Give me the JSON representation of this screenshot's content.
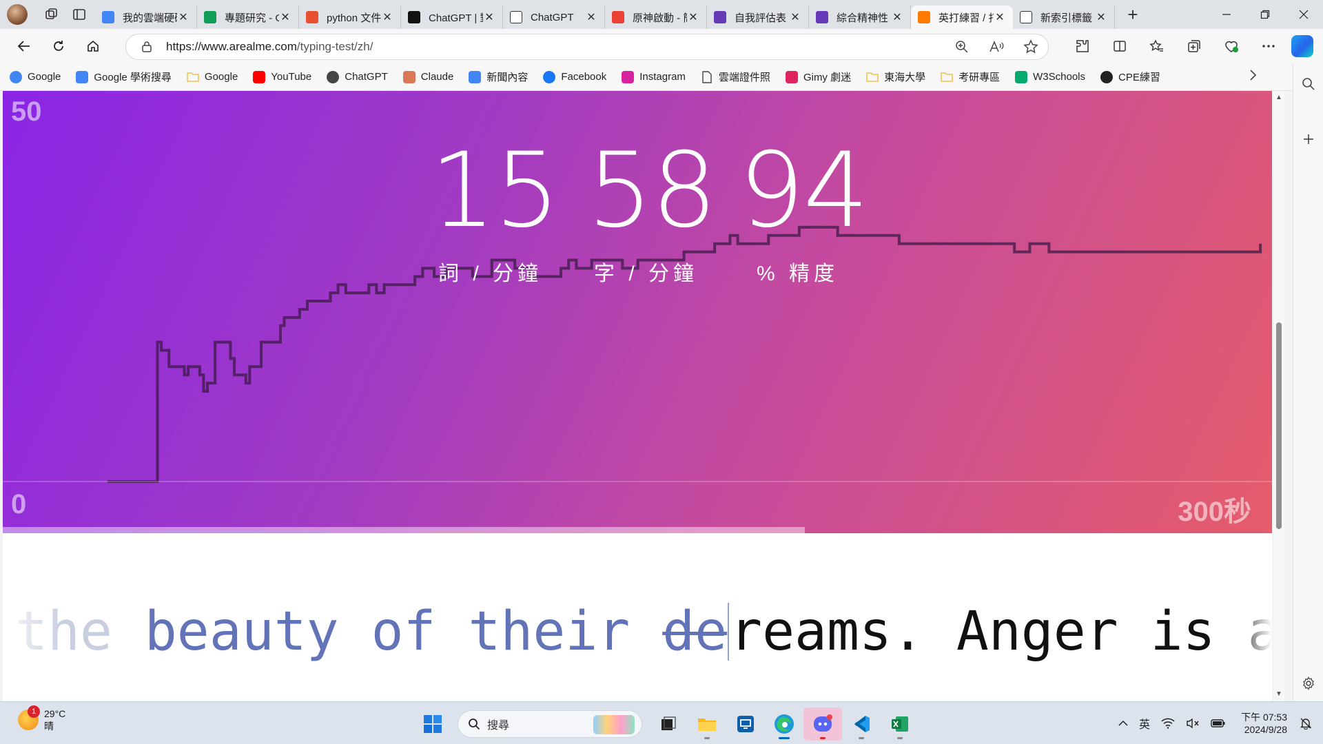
{
  "browser": {
    "tabs": [
      {
        "title": "我的雲端硬碟",
        "color": "#4285f4",
        "icon": "google-drive-icon"
      },
      {
        "title": "專題研究 - Google",
        "color": "#0f9d58",
        "icon": "google-drive-icon"
      },
      {
        "title": "python 文件",
        "color": "#e8502f",
        "icon": "c-icon"
      },
      {
        "title": "ChatGPT | 對話",
        "color": "#111111",
        "icon": "chatgpt-icon"
      },
      {
        "title": "ChatGPT",
        "color": "#ffffff",
        "icon": "chatgpt-icon"
      },
      {
        "title": "原神啟動 - 簡報",
        "color": "#e94235",
        "icon": "slides-icon"
      },
      {
        "title": "自我評估表",
        "color": "#673ab7",
        "icon": "forms-icon"
      },
      {
        "title": "綜合精神性",
        "color": "#673ab7",
        "icon": "forms-icon"
      },
      {
        "title": "英打練習 / 打字",
        "color": "#ff7a00",
        "icon": "fox-icon",
        "active": true
      },
      {
        "title": "新索引標籤",
        "color": "#ffffff",
        "icon": "newtab-icon"
      }
    ],
    "url": "https://www.arealme.com/typing-test/zh/",
    "url_host": "https://www.arealme.com",
    "url_path": "/typing-test/zh/"
  },
  "bookmarks": [
    {
      "label": "Google",
      "icon": "google-icon",
      "color": "#4285f4"
    },
    {
      "label": "Google 學術搜尋",
      "icon": "scholar-icon",
      "color": "#4285f4"
    },
    {
      "label": "Google",
      "icon": "folder-icon",
      "color": "#f2c14e"
    },
    {
      "label": "YouTube",
      "icon": "youtube-icon",
      "color": "#ff0000"
    },
    {
      "label": "ChatGPT",
      "icon": "chatgpt-icon",
      "color": "#444444"
    },
    {
      "label": "Claude",
      "icon": "claude-icon",
      "color": "#d97757"
    },
    {
      "label": "新聞內容",
      "icon": "news-icon",
      "color": "#4285f4"
    },
    {
      "label": "Facebook",
      "icon": "facebook-icon",
      "color": "#1877f2"
    },
    {
      "label": "Instagram",
      "icon": "instagram-icon",
      "color": "#d6249f"
    },
    {
      "label": "雲端證件照",
      "icon": "page-icon",
      "color": "#555555"
    },
    {
      "label": "Gimy 劇迷",
      "icon": "gimy-icon",
      "color": "#e0245e"
    },
    {
      "label": "東海大學",
      "icon": "folder-icon",
      "color": "#f2c14e"
    },
    {
      "label": "考研專區",
      "icon": "folder-icon",
      "color": "#f2c14e"
    },
    {
      "label": "W3Schools",
      "icon": "w3schools-icon",
      "color": "#04aa6d"
    },
    {
      "label": "CPE練習",
      "icon": "github-icon",
      "color": "#222222"
    }
  ],
  "test": {
    "chart_top_label": "50",
    "chart_zero_label": "0",
    "chart_end_label": "300秒",
    "wpm": "15",
    "cpm": "58",
    "accuracy": "94",
    "wpm_label": "詞 / 分鐘",
    "cpm_label": "字 / 分鐘",
    "accuracy_label": "% 精度",
    "progress": 0.632,
    "typed_fade": "the",
    "typed_text": " beauty of their ",
    "wrong_text": "de",
    "untyped_text": "reams. Anger is an aci"
  },
  "chart_data": {
    "type": "line",
    "series": [
      {
        "x": [
          0,
          12,
          13,
          14,
          16,
          20,
          21,
          24,
          25,
          26,
          28,
          32,
          33,
          36,
          37,
          40,
          45,
          46,
          50,
          52,
          58,
          60,
          62,
          65,
          68,
          70,
          72,
          75,
          80,
          82,
          85,
          88,
          95,
          100,
          106,
          110,
          114,
          118,
          120,
          122,
          126,
          130,
          134,
          138,
          144,
          150,
          158,
          162,
          164,
          170,
          172,
          180,
          190,
          200,
          206,
          215,
          230,
          236,
          240,
          245,
          260,
          300
        ],
        "y": [
          0,
          0,
          17,
          16,
          14,
          13,
          14,
          13,
          11,
          12,
          17,
          15,
          13,
          12,
          14,
          17,
          19,
          20,
          21,
          22,
          23,
          24,
          23,
          23,
          24,
          23,
          24,
          24,
          25,
          26,
          25,
          26,
          25,
          27,
          26,
          25,
          25,
          26,
          27,
          26,
          27,
          27,
          26,
          27,
          27,
          28,
          29,
          30,
          29,
          29,
          30,
          31,
          30,
          30,
          29,
          29,
          29,
          28,
          29,
          28,
          28,
          29
        ]
      }
    ],
    "xlim": [
      0,
      300
    ],
    "ylim": [
      0,
      50
    ],
    "grid": false
  },
  "taskbar": {
    "badge": "1",
    "temperature": "29°C",
    "weather": "晴",
    "search_placeholder": "搜尋",
    "ime": "英",
    "time": "下午 07:53",
    "date": "2024/9/28"
  }
}
